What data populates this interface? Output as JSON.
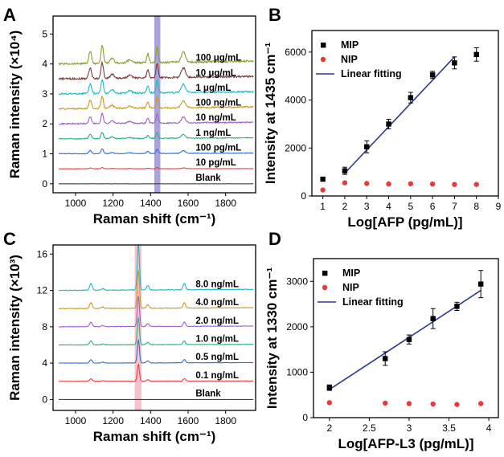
{
  "chart_data": [
    {
      "panel": "A",
      "type": "line",
      "xlabel": "Raman shift (cm⁻¹)",
      "ylabel": "Raman intensity (×10⁴)",
      "xlim": [
        880,
        1960
      ],
      "ylim": [
        -0.3,
        5.6
      ],
      "x_ticks": [
        1000,
        1200,
        1400,
        1600,
        1800
      ],
      "y_ticks": [
        0,
        1,
        2,
        3,
        4,
        5
      ],
      "highlight_band": [
        1420,
        1452
      ],
      "highlight_color": "#9b93d4",
      "peaks": [
        [
          1078,
          0.08,
          10
        ],
        [
          1142,
          0.12,
          9
        ],
        [
          1195,
          0.03,
          14
        ],
        [
          1288,
          0.02,
          16
        ],
        [
          1385,
          0.06,
          8
        ],
        [
          1435,
          0.11,
          8
        ],
        [
          1575,
          0.07,
          16
        ]
      ],
      "series": [
        {
          "name": "Blank",
          "offset": 0.0,
          "scale": 0.0,
          "color": "#444444"
        },
        {
          "name": "10 pg/mL",
          "offset": 0.5,
          "scale": 0.35,
          "color": "#e8403f"
        },
        {
          "name": "100 pg/mL",
          "offset": 1.0,
          "scale": 1.3,
          "color": "#2e6fd0"
        },
        {
          "name": "1 ng/mL",
          "offset": 1.5,
          "scale": 1.8,
          "color": "#2ab07a"
        },
        {
          "name": "10 ng/mL",
          "offset": 2.0,
          "scale": 2.8,
          "color": "#a060c8"
        },
        {
          "name": "100 ng/mL",
          "offset": 2.5,
          "scale": 3.4,
          "color": "#c99a1a"
        },
        {
          "name": "1 μg/mL",
          "offset": 3.0,
          "scale": 3.9,
          "color": "#22b8c8"
        },
        {
          "name": "10 μg/mL",
          "offset": 3.5,
          "scale": 4.4,
          "color": "#7a3a3a"
        },
        {
          "name": "100 μg/mL",
          "offset": 4.0,
          "scale": 5.0,
          "color": "#8f9a2e"
        }
      ]
    },
    {
      "panel": "B",
      "type": "scatter",
      "xlabel": "Log[AFP (pg/mL)]",
      "ylabel": "Intensity at 1435 cm⁻¹",
      "xlim": [
        0.5,
        9.0
      ],
      "ylim": [
        0,
        6900
      ],
      "x_ticks": [
        1,
        2,
        3,
        4,
        5,
        6,
        7,
        8,
        9
      ],
      "y_ticks": [
        0,
        2000,
        4000,
        6000
      ],
      "legend": [
        "MIP",
        "NIP",
        "Linear fitting"
      ],
      "legend_position": "top-left",
      "series": [
        {
          "name": "MIP",
          "marker": "square",
          "color": "#000000",
          "x": [
            1,
            2,
            3,
            4,
            5,
            6,
            7,
            8
          ],
          "y": [
            700,
            1050,
            2050,
            3000,
            4100,
            5050,
            5550,
            5900
          ],
          "err": [
            60,
            150,
            250,
            200,
            220,
            150,
            250,
            280
          ]
        },
        {
          "name": "NIP",
          "marker": "circle",
          "color": "#e83a3a",
          "x": [
            1,
            2,
            3,
            4,
            5,
            6,
            7,
            8
          ],
          "y": [
            250,
            550,
            520,
            500,
            510,
            500,
            480,
            480
          ]
        },
        {
          "name": "Linear fitting",
          "line": true,
          "color": "#2b3a8f",
          "x": [
            2,
            7
          ],
          "y": [
            950,
            5800
          ]
        }
      ]
    },
    {
      "panel": "C",
      "type": "line",
      "xlabel": "Raman shift (cm⁻¹)",
      "ylabel": "Raman intensity (×10³)",
      "xlim": [
        880,
        1960
      ],
      "ylim": [
        -1.2,
        17.0
      ],
      "x_ticks": [
        1000,
        1200,
        1400,
        1600,
        1800
      ],
      "y_ticks": [
        0,
        4,
        8,
        12,
        16
      ],
      "highlight_band": [
        1315,
        1352
      ],
      "highlight_color": "#f4b8c4",
      "peaks": [
        [
          1082,
          0.12,
          10
        ],
        [
          1145,
          0.03,
          10
        ],
        [
          1335,
          0.85,
          8
        ],
        [
          1385,
          0.08,
          9
        ],
        [
          1580,
          0.12,
          9
        ]
      ],
      "series": [
        {
          "name": "Blank",
          "offset": 0.0,
          "scale": 0.0,
          "color": "#444444"
        },
        {
          "name": "0.1 ng/mL",
          "offset": 2.0,
          "scale": 2.2,
          "color": "#e8403f"
        },
        {
          "name": "0.5 ng/mL",
          "offset": 4.0,
          "scale": 3.0,
          "color": "#2e6fd0"
        },
        {
          "name": "1.0 ng/mL",
          "offset": 6.0,
          "scale": 3.5,
          "color": "#2ab07a"
        },
        {
          "name": "2.0 ng/mL",
          "offset": 8.0,
          "scale": 4.0,
          "color": "#a060c8"
        },
        {
          "name": "4.0 ng/mL",
          "offset": 10.0,
          "scale": 5.0,
          "color": "#c99a1a"
        },
        {
          "name": "8.0 ng/mL",
          "offset": 12.0,
          "scale": 6.0,
          "color": "#22b8c8"
        }
      ]
    },
    {
      "panel": "D",
      "type": "scatter",
      "xlabel": "Log[AFP-L3 (pg/mL)]",
      "ylabel": "Intensity at 1330 cm⁻¹",
      "xlim": [
        1.8,
        4.12
      ],
      "ylim": [
        0,
        3500
      ],
      "x_ticks": [
        2,
        2.5,
        3,
        3.5,
        4
      ],
      "x_tick_labels": [
        "2",
        "2.5",
        "3",
        "3.5",
        "4"
      ],
      "y_ticks": [
        0,
        1000,
        2000,
        3000
      ],
      "legend": [
        "MIP",
        "NIP",
        "Linear fitting"
      ],
      "legend_position": "top-left",
      "series": [
        {
          "name": "MIP",
          "marker": "square",
          "color": "#000000",
          "x": [
            2,
            2.7,
            3,
            3.3,
            3.6,
            3.9
          ],
          "y": [
            660,
            1300,
            1720,
            2180,
            2450,
            2940
          ],
          "err": [
            60,
            150,
            100,
            220,
            90,
            300
          ]
        },
        {
          "name": "NIP",
          "marker": "circle",
          "color": "#e83a3a",
          "x": [
            2,
            2.7,
            3,
            3.3,
            3.6,
            3.9
          ],
          "y": [
            330,
            320,
            310,
            300,
            290,
            310
          ]
        },
        {
          "name": "Linear fitting",
          "line": true,
          "color": "#2b3a8f",
          "x": [
            2,
            3.9
          ],
          "y": [
            620,
            2800
          ]
        }
      ]
    }
  ]
}
